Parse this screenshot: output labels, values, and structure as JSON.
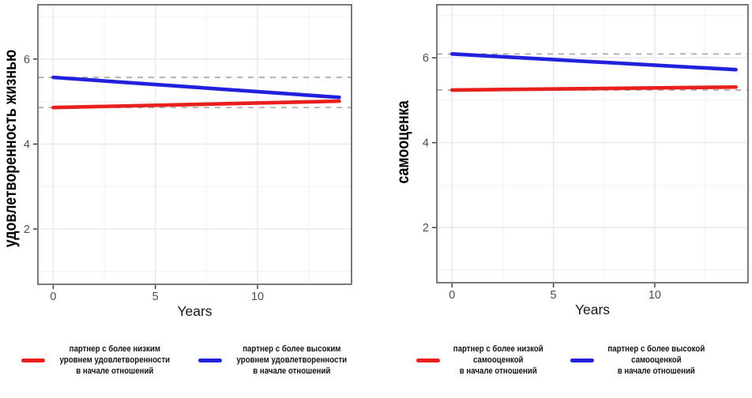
{
  "theme": {
    "background": "#ffffff",
    "panel_border_color": "#5a5a5a",
    "grid_major_color": "#ebe7ef",
    "grid_minor_color": "#f4f1f7",
    "baseline_color": "#ababab",
    "tick_color": "#333333",
    "tick_label_color": "#4d4d4d",
    "axis_title_color": "#161616",
    "y_title_color": "#000000",
    "red": "#e81f1c",
    "blue": "#2121dd"
  },
  "chart_data": [
    {
      "type": "line",
      "title": "",
      "ylabel": "удовлетворенность жизнью",
      "xlabel": "Years",
      "xlim": [
        -0.75,
        14.6
      ],
      "ylim": [
        0.7,
        7.28
      ],
      "x_ticks": [
        0,
        5,
        10
      ],
      "y_ticks": [
        2,
        4,
        6
      ],
      "x_minor_ticks": [
        2.5,
        7.5,
        12.5
      ],
      "y_minor_ticks": [
        1,
        3,
        5,
        7
      ],
      "grid": true,
      "legend_position": "bottom",
      "x": [
        0,
        14
      ],
      "series": [
        {
          "name": "партнер с более низким уровнем удовлетворенности в начале отношений",
          "legend_label": "партнер с более низким\nуровнем удовлетворенности\nв начале отношений",
          "color": "#e81f1c",
          "values": [
            4.86,
            5.01
          ],
          "baseline": 4.86
        },
        {
          "name": "партнер с более высоким уровнем удовлетворенности в начале отношений",
          "legend_label": "партнер с более высоким\nуровнем удовлетворенности\nв начале отношений",
          "color": "#2121dd",
          "values": [
            5.57,
            5.1
          ],
          "baseline": 5.57
        }
      ]
    },
    {
      "type": "line",
      "title": "",
      "ylabel": "самооценка",
      "xlabel": "Years",
      "xlim": [
        -0.75,
        14.6
      ],
      "ylim": [
        0.7,
        7.25
      ],
      "x_ticks": [
        0,
        5,
        10
      ],
      "y_ticks": [
        2,
        4,
        6
      ],
      "x_minor_ticks": [
        2.5,
        7.5,
        12.5
      ],
      "y_minor_ticks": [
        1,
        3,
        5,
        7
      ],
      "grid": true,
      "legend_position": "bottom",
      "x": [
        0,
        14
      ],
      "series": [
        {
          "name": "партнер с более низкой самооценкой в начале отношений",
          "legend_label": "партнер с более низкой\nсамооценкой\nв начале отношений",
          "color": "#e81f1c",
          "values": [
            5.24,
            5.31
          ],
          "baseline": 5.24
        },
        {
          "name": "партнер с более высокой самооценкой в начале отношений",
          "legend_label": "партнер с более высокой\nсамооценкой\nв начале отношений",
          "color": "#2121dd",
          "values": [
            6.09,
            5.72
          ],
          "baseline": 6.09
        }
      ]
    }
  ]
}
